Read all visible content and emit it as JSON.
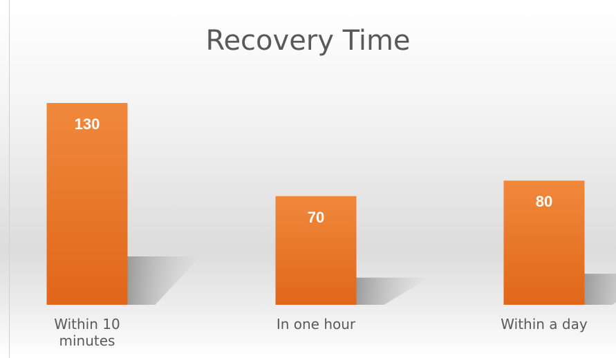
{
  "chart_data": {
    "type": "bar",
    "title": "Recovery Time",
    "categories": [
      "Within 10 minutes",
      "In one hour",
      "Within a day"
    ],
    "values": [
      130,
      70,
      80
    ],
    "color": "#ec7a2e"
  }
}
